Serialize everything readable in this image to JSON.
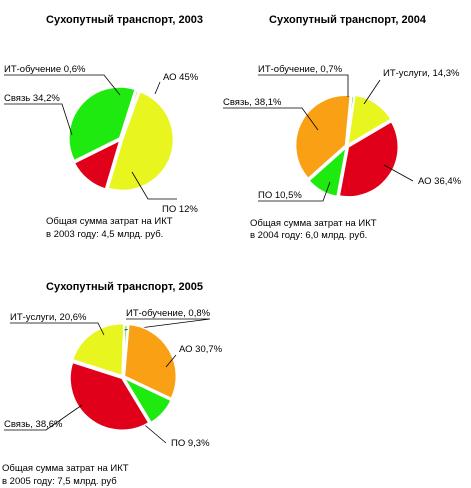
{
  "chart_data": [
    {
      "type": "pie",
      "title": "Сухопутный транспорт, 2003",
      "slices": [
        {
          "label": "АО 45%",
          "name": "АО",
          "value": 45,
          "color": "#e8f51f"
        },
        {
          "label": "ПО 12%",
          "name": "ПО",
          "value": 12,
          "color": "#e0001a"
        },
        {
          "label": "Связь 34,2%",
          "name": "Связь",
          "value": 34.2,
          "color": "#1fea10"
        },
        {
          "label": "ИТ-обучение 0,6%",
          "name": "ИТ-обучение",
          "value": 0.6,
          "color": "#f9a015"
        }
      ],
      "caption": [
        "Общая сумма затрат на ИКТ",
        "в 2003 году: 4,5 млрд. руб."
      ]
    },
    {
      "type": "pie",
      "title": "Сухопутный транспорт, 2004",
      "slices": [
        {
          "label": "ИТ-услуги, 14,3%",
          "name": "ИТ-услуги",
          "value": 14.3,
          "color": "#e8f51f"
        },
        {
          "label": "АО 36,4%",
          "name": "АО",
          "value": 36.4,
          "color": "#e0001a"
        },
        {
          "label": "ПО 10,5%",
          "name": "ПО",
          "value": 10.5,
          "color": "#1fea10"
        },
        {
          "label": "Связь, 38,1%",
          "name": "Связь",
          "value": 38.1,
          "color": "#f9a015"
        },
        {
          "label": "ИТ-обучение, 0,7%",
          "name": "ИТ-обучение",
          "value": 0.7,
          "color": "#1fea10"
        }
      ],
      "caption": [
        "Общая сумма затрат на ИКТ",
        "в 2004 году: 6,0 млрд. руб."
      ]
    },
    {
      "type": "pie",
      "title": "Сухопутный транспорт, 2005",
      "slices": [
        {
          "label": "ИТ-обучение, 0,8%",
          "name": "ИТ-обучение",
          "value": 0.8,
          "color": "#1fea10"
        },
        {
          "label": "АО 30,7%",
          "name": "АО",
          "value": 30.7,
          "color": "#f9a015"
        },
        {
          "label": "ПО 9,3%",
          "name": "ПО",
          "value": 9.3,
          "color": "#1fea10"
        },
        {
          "label": "Связь, 38,6%",
          "name": "Связь",
          "value": 38.6,
          "color": "#e0001a"
        },
        {
          "label": "ИТ-услуги, 20,6%",
          "name": "ИТ-услуги",
          "value": 20.6,
          "color": "#e8f51f"
        }
      ],
      "caption": [
        "Общая сумма затрат на ИКТ",
        "в 2005 году: 7,5 млрд. руб"
      ]
    }
  ]
}
